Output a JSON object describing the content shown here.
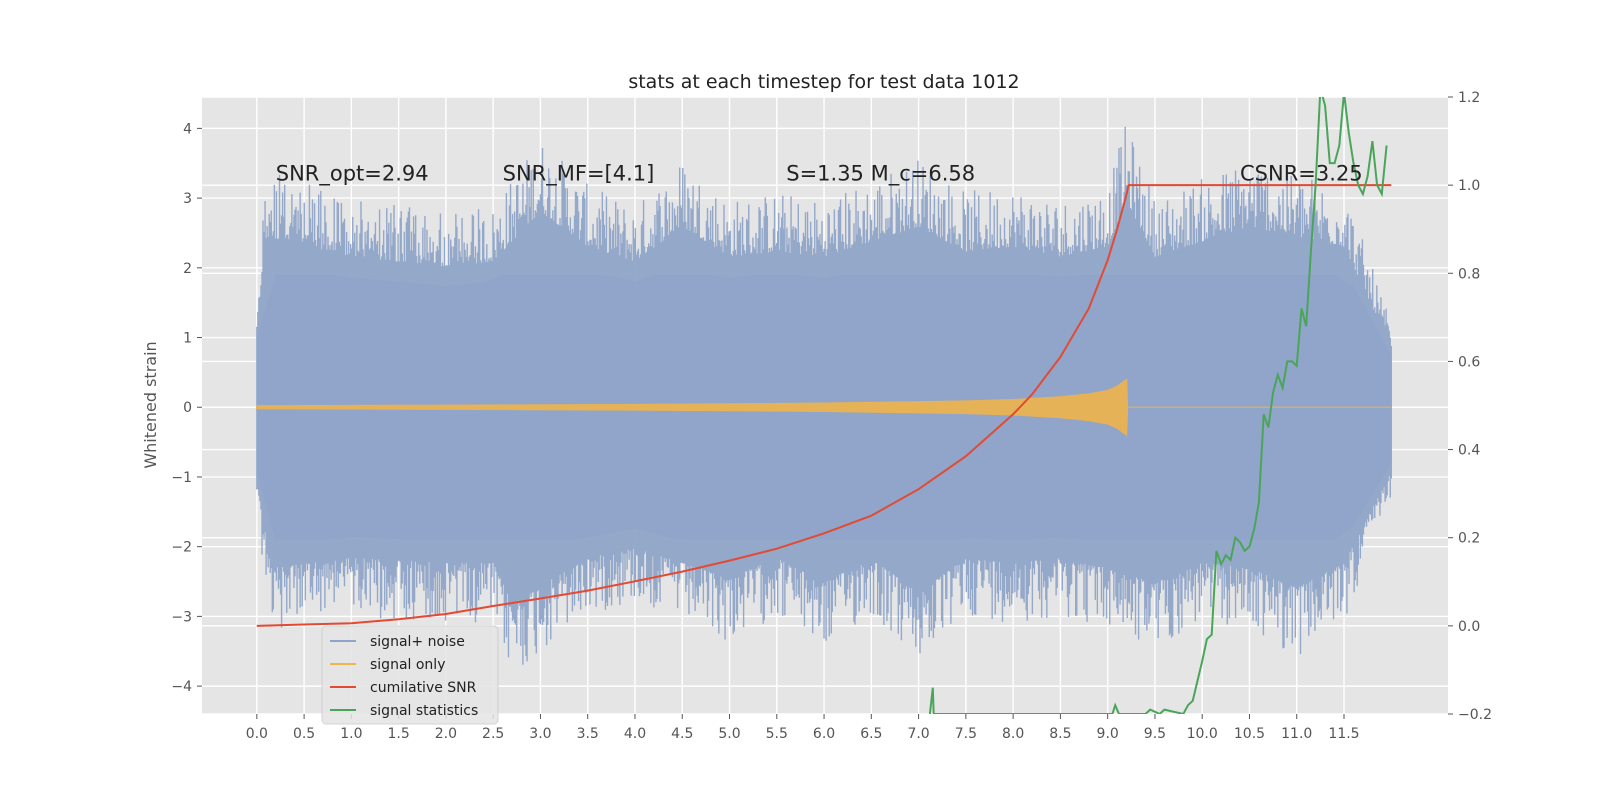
{
  "chart_data": {
    "type": "line",
    "title": "stats at each timestep for test data 1012",
    "ylabel": "Whitened strain",
    "y2label": "",
    "xlim": [
      -0.58,
      12.6
    ],
    "ylim": [
      -4.4,
      4.45
    ],
    "y2lim": [
      -0.2,
      1.2
    ],
    "xticks": [
      "0.0",
      "0.5",
      "1.0",
      "1.5",
      "2.0",
      "2.5",
      "3.0",
      "3.5",
      "4.0",
      "4.5",
      "5.0",
      "5.5",
      "6.0",
      "6.5",
      "7.0",
      "7.5",
      "8.0",
      "8.5",
      "9.0",
      "9.5",
      "10.0",
      "10.5",
      "11.0",
      "11.5"
    ],
    "yticks": [
      "4",
      "3",
      "2",
      "1",
      "0",
      "−1",
      "−2",
      "−3",
      "−4"
    ],
    "y2ticks": [
      "1.2",
      "1.0",
      "0.8",
      "0.6",
      "0.4",
      "0.2",
      "0.0",
      "−0.2"
    ],
    "grid": true,
    "legend_position": "lower-left",
    "annotations": [
      {
        "id": "snr-opt",
        "text": "SNR_opt=2.94"
      },
      {
        "id": "snr-mf",
        "text": "SNR_MF=[4.1]"
      },
      {
        "id": "s-mc",
        "text": "S=1.35   M_c=6.58"
      },
      {
        "id": "csnr",
        "text": "CSNR=3.25"
      }
    ],
    "series": [
      {
        "name": "signal+ noise",
        "axis": "left",
        "color": "#8fa4c8",
        "x_range": [
          0.0,
          12.0
        ],
        "values_note": "",
        "envelope_upper": [
          [
            0.0,
            1.6
          ],
          [
            0.1,
            3.4
          ],
          [
            1.0,
            3.0
          ],
          [
            2.0,
            2.8
          ],
          [
            2.5,
            2.9
          ],
          [
            3.0,
            3.9
          ],
          [
            3.5,
            3.2
          ],
          [
            4.0,
            2.9
          ],
          [
            4.5,
            3.6
          ],
          [
            5.0,
            3.0
          ],
          [
            5.5,
            3.1
          ],
          [
            6.0,
            3.0
          ],
          [
            6.5,
            3.3
          ],
          [
            7.0,
            3.6
          ],
          [
            7.5,
            3.1
          ],
          [
            8.0,
            3.2
          ],
          [
            8.5,
            3.0
          ],
          [
            9.0,
            3.2
          ],
          [
            9.2,
            4.1
          ],
          [
            9.5,
            3.0
          ],
          [
            10.0,
            3.3
          ],
          [
            10.5,
            3.6
          ],
          [
            11.0,
            3.4
          ],
          [
            11.5,
            3.2
          ],
          [
            12.0,
            1.2
          ]
        ],
        "envelope_lower": [
          [
            0.0,
            -1.5
          ],
          [
            0.15,
            -3.2
          ],
          [
            1.0,
            -3.0
          ],
          [
            2.0,
            -3.1
          ],
          [
            2.5,
            -3.1
          ],
          [
            2.7,
            -3.9
          ],
          [
            3.5,
            -3.0
          ],
          [
            4.0,
            -2.8
          ],
          [
            4.5,
            -3.1
          ],
          [
            5.0,
            -3.4
          ],
          [
            5.5,
            -3.0
          ],
          [
            6.0,
            -3.5
          ],
          [
            6.5,
            -3.0
          ],
          [
            7.0,
            -3.7
          ],
          [
            7.5,
            -3.0
          ],
          [
            8.0,
            -3.1
          ],
          [
            8.5,
            -3.0
          ],
          [
            9.0,
            -3.2
          ],
          [
            9.5,
            -3.5
          ],
          [
            10.0,
            -3.1
          ],
          [
            10.5,
            -3.2
          ],
          [
            11.0,
            -3.6
          ],
          [
            11.5,
            -3.1
          ],
          [
            12.0,
            -1.3
          ]
        ]
      },
      {
        "name": "signal only",
        "axis": "left",
        "color": "#f0b44c",
        "x": [
          0.0,
          2.0,
          4.0,
          5.0,
          6.0,
          7.0,
          7.5,
          8.0,
          8.5,
          8.8,
          9.0,
          9.1,
          9.2,
          9.21,
          12.0
        ],
        "amplitude": [
          0.02,
          0.03,
          0.04,
          0.05,
          0.06,
          0.08,
          0.09,
          0.11,
          0.15,
          0.19,
          0.24,
          0.3,
          0.4,
          0.0,
          0.0
        ]
      },
      {
        "name": "cumilative SNR",
        "axis": "right",
        "color": "#e24a33",
        "x": [
          0.0,
          0.5,
          1.0,
          1.5,
          2.0,
          2.5,
          3.0,
          3.5,
          4.0,
          4.5,
          5.0,
          5.5,
          6.0,
          6.5,
          7.0,
          7.5,
          8.0,
          8.2,
          8.5,
          8.8,
          9.0,
          9.1,
          9.2,
          9.22,
          12.0
        ],
        "values": [
          0.0,
          0.003,
          0.006,
          0.015,
          0.027,
          0.045,
          0.062,
          0.08,
          0.101,
          0.123,
          0.148,
          0.175,
          0.21,
          0.25,
          0.31,
          0.385,
          0.48,
          0.525,
          0.61,
          0.72,
          0.83,
          0.9,
          0.98,
          1.0,
          1.0
        ]
      },
      {
        "name": "signal statistics",
        "axis": "right",
        "color": "#4aa55a",
        "x": [
          7.12,
          7.15,
          7.16,
          9.05,
          9.08,
          9.12,
          9.4,
          9.45,
          9.55,
          9.6,
          9.8,
          9.85,
          9.9,
          10.0,
          10.05,
          10.1,
          10.15,
          10.2,
          10.25,
          10.3,
          10.35,
          10.4,
          10.45,
          10.5,
          10.55,
          10.6,
          10.65,
          10.7,
          10.75,
          10.8,
          10.85,
          10.9,
          10.95,
          11.0,
          11.05,
          11.1,
          11.15,
          11.2,
          11.25,
          11.3,
          11.35,
          11.4,
          11.45,
          11.5,
          11.55,
          11.6,
          11.65,
          11.7,
          11.75,
          11.8,
          11.85,
          11.9,
          11.95
        ],
        "values": [
          -0.2,
          -0.14,
          -0.2,
          -0.2,
          -0.18,
          -0.2,
          -0.2,
          -0.19,
          -0.2,
          -0.19,
          -0.2,
          -0.18,
          -0.17,
          -0.08,
          -0.03,
          -0.02,
          0.17,
          0.14,
          0.16,
          0.15,
          0.2,
          0.19,
          0.17,
          0.18,
          0.22,
          0.28,
          0.48,
          0.45,
          0.53,
          0.57,
          0.54,
          0.6,
          0.6,
          0.59,
          0.72,
          0.68,
          0.85,
          1.0,
          1.22,
          1.18,
          1.05,
          1.05,
          1.09,
          1.21,
          1.12,
          1.05,
          1.0,
          0.98,
          1.02,
          1.1,
          1.0,
          0.98,
          1.09
        ]
      }
    ]
  },
  "legend": {
    "items": [
      {
        "label": "signal+ noise",
        "color": "#8fa4c8"
      },
      {
        "label": "signal only",
        "color": "#f0b44c"
      },
      {
        "label": "cumilative SNR",
        "color": "#e24a33"
      },
      {
        "label": "signal statistics",
        "color": "#4aa55a"
      }
    ]
  }
}
